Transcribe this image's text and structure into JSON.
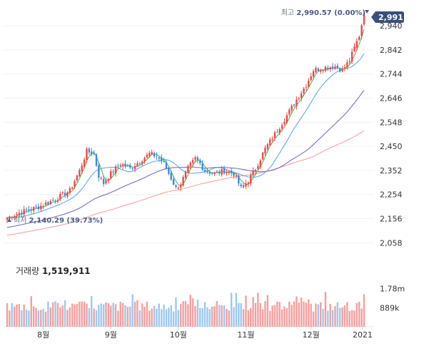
{
  "chart_data": {
    "type": "candlestick",
    "current_price": "2,991",
    "price_axis": {
      "ticks": [
        "2,940",
        "2,842",
        "2,744",
        "2,646",
        "2,548",
        "2,450",
        "2,352",
        "2,254",
        "2,156",
        "2,058"
      ],
      "values": [
        2940,
        2842,
        2744,
        2646,
        2548,
        2450,
        2352,
        2254,
        2156,
        2058
      ],
      "range": [
        2030,
        3010
      ]
    },
    "x_axis": {
      "ticks": [
        "8월",
        "9월",
        "10월",
        "11월",
        "12월",
        "2021"
      ]
    },
    "high_annotation": {
      "label": "최고",
      "value": "2,990.57 (0.00%)",
      "icon": "triangle-down-icon"
    },
    "low_annotation": {
      "label": "최저",
      "value": "2,140.29 (39.73%)",
      "icon": "triangle-up-icon"
    },
    "close_anchors": [
      [
        0,
        2160
      ],
      [
        5,
        2180
      ],
      [
        12,
        2200
      ],
      [
        20,
        2235
      ],
      [
        26,
        2270
      ],
      [
        30,
        2350
      ],
      [
        33,
        2430
      ],
      [
        36,
        2420
      ],
      [
        38,
        2330
      ],
      [
        40,
        2300
      ],
      [
        43,
        2340
      ],
      [
        47,
        2380
      ],
      [
        51,
        2360
      ],
      [
        55,
        2390
      ],
      [
        59,
        2420
      ],
      [
        62,
        2410
      ],
      [
        65,
        2380
      ],
      [
        67,
        2340
      ],
      [
        70,
        2280
      ],
      [
        72,
        2300
      ],
      [
        75,
        2360
      ],
      [
        78,
        2400
      ],
      [
        80,
        2380
      ],
      [
        82,
        2350
      ],
      [
        86,
        2340
      ],
      [
        90,
        2350
      ],
      [
        94,
        2340
      ],
      [
        97,
        2280
      ],
      [
        100,
        2310
      ],
      [
        103,
        2360
      ],
      [
        107,
        2440
      ],
      [
        111,
        2500
      ],
      [
        115,
        2560
      ],
      [
        120,
        2640
      ],
      [
        124,
        2700
      ],
      [
        127,
        2760
      ],
      [
        131,
        2770
      ],
      [
        136,
        2775
      ],
      [
        139,
        2760
      ],
      [
        142,
        2800
      ],
      [
        146,
        2900
      ],
      [
        148,
        2990
      ]
    ],
    "ma_colors": {
      "ma5": "#5cb85c",
      "ma20": "#5aaee5",
      "ma60": "#7b6fc0",
      "ma120": "#f5a3a3"
    },
    "volume": {
      "label": "거래량",
      "value": "1,519,911",
      "ticks": [
        "1.78m",
        "889k"
      ],
      "tick_values": [
        1780000,
        889000
      ]
    },
    "colors": {
      "up": "#e84a4a",
      "down": "#3b8ad8",
      "up_volume": "#f2a0a0",
      "down_volume": "#9ec9ee",
      "price_tag": "#3b4f7a"
    }
  }
}
